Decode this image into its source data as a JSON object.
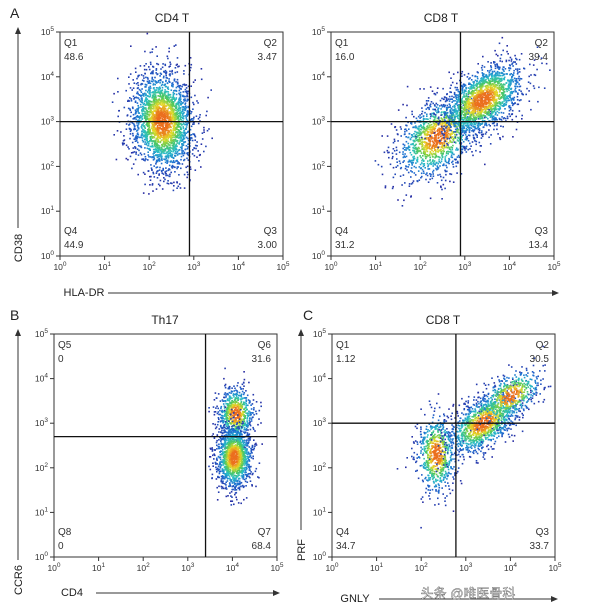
{
  "watermark": "头条 @唯医骨科",
  "chart_data": [
    {
      "type": "scatter",
      "panel_letter": "A",
      "title": "CD4 T",
      "xlabel": "HLA-DR",
      "ylabel": "CD38",
      "x_scale": "log",
      "y_scale": "log",
      "xlim": [
        1,
        100000
      ],
      "ylim": [
        1,
        100000
      ],
      "x_ticks": [
        "10^0",
        "10^1",
        "10^2",
        "10^3",
        "10^4",
        "10^5"
      ],
      "y_ticks": [
        "10^0",
        "10^1",
        "10^2",
        "10^3",
        "10^4",
        "10^5"
      ],
      "gate": {
        "x": 800,
        "y": 1000
      },
      "quadrants": [
        {
          "name": "Q1",
          "value": "48.6",
          "position": "top-left"
        },
        {
          "name": "Q2",
          "value": "3.47",
          "position": "top-right"
        },
        {
          "name": "Q3",
          "value": "3.00",
          "position": "bottom-right"
        },
        {
          "name": "Q4",
          "value": "44.9",
          "position": "bottom-left"
        }
      ],
      "clusters": [
        {
          "x": 200,
          "y": 1000,
          "count": 2400,
          "spread": [
            0.35,
            0.55
          ],
          "rho": -0.1
        }
      ]
    },
    {
      "type": "scatter",
      "panel_letter": "",
      "title": "CD8 T",
      "xlabel": "",
      "ylabel": "",
      "x_scale": "log",
      "y_scale": "log",
      "xlim": [
        1,
        100000
      ],
      "ylim": [
        1,
        100000
      ],
      "x_ticks": [
        "10^0",
        "10^1",
        "10^2",
        "10^3",
        "10^4",
        "10^5"
      ],
      "y_ticks": [
        "10^0",
        "10^1",
        "10^2",
        "10^3",
        "10^4",
        "10^5"
      ],
      "gate": {
        "x": 800,
        "y": 1000
      },
      "quadrants": [
        {
          "name": "Q1",
          "value": "16.0",
          "position": "top-left"
        },
        {
          "name": "Q2",
          "value": "39.4",
          "position": "top-right"
        },
        {
          "name": "Q3",
          "value": "13.4",
          "position": "bottom-right"
        },
        {
          "name": "Q4",
          "value": "31.2",
          "position": "bottom-left"
        }
      ],
      "clusters": [
        {
          "x": 250,
          "y": 450,
          "count": 1300,
          "spread": [
            0.45,
            0.45
          ],
          "rho": 0.4
        },
        {
          "x": 2500,
          "y": 3000,
          "count": 1700,
          "spread": [
            0.45,
            0.4
          ],
          "rho": 0.5
        }
      ]
    },
    {
      "type": "scatter",
      "panel_letter": "B",
      "title": "Th17",
      "xlabel": "CD4",
      "ylabel": "CCR6",
      "x_scale": "log",
      "y_scale": "log",
      "xlim": [
        1,
        100000
      ],
      "ylim": [
        1,
        100000
      ],
      "x_ticks": [
        "10^0",
        "10^1",
        "10^2",
        "10^3",
        "10^4",
        "10^5"
      ],
      "y_ticks": [
        "10^0",
        "10^1",
        "10^2",
        "10^3",
        "10^4",
        "10^5"
      ],
      "gate": {
        "x": 2500,
        "y": 500
      },
      "quadrants": [
        {
          "name": "Q5",
          "value": "0",
          "position": "top-left"
        },
        {
          "name": "Q6",
          "value": "31.6",
          "position": "top-right"
        },
        {
          "name": "Q7",
          "value": "68.4",
          "position": "bottom-right"
        },
        {
          "name": "Q8",
          "value": "0",
          "position": "bottom-left"
        }
      ],
      "clusters": [
        {
          "x": 12000,
          "y": 1600,
          "count": 700,
          "spread": [
            0.2,
            0.3
          ],
          "rho": 0.0
        },
        {
          "x": 11000,
          "y": 170,
          "count": 1300,
          "spread": [
            0.2,
            0.35
          ],
          "rho": 0.0
        }
      ]
    },
    {
      "type": "scatter",
      "panel_letter": "C",
      "title": "CD8 T",
      "xlabel": "GNLY",
      "ylabel": "PRF",
      "x_scale": "log",
      "y_scale": "log",
      "xlim": [
        1,
        100000
      ],
      "ylim": [
        1,
        100000
      ],
      "x_ticks": [
        "10^0",
        "10^1",
        "10^2",
        "10^3",
        "10^4",
        "10^5"
      ],
      "y_ticks": [
        "10^0",
        "10^1",
        "10^2",
        "10^3",
        "10^4",
        "10^5"
      ],
      "gate": {
        "x": 600,
        "y": 1000
      },
      "quadrants": [
        {
          "name": "Q1",
          "value": "1.12",
          "position": "top-left"
        },
        {
          "name": "Q2",
          "value": "30.5",
          "position": "top-right"
        },
        {
          "name": "Q3",
          "value": "33.7",
          "position": "bottom-right"
        },
        {
          "name": "Q4",
          "value": "34.7",
          "position": "bottom-left"
        }
      ],
      "clusters": [
        {
          "x": 220,
          "y": 200,
          "count": 700,
          "spread": [
            0.22,
            0.45
          ],
          "rho": 0.0
        },
        {
          "x": 2500,
          "y": 1000,
          "count": 1200,
          "spread": [
            0.4,
            0.35
          ],
          "rho": 0.55
        },
        {
          "x": 10000,
          "y": 4000,
          "count": 500,
          "spread": [
            0.35,
            0.3
          ],
          "rho": 0.5
        }
      ]
    }
  ]
}
